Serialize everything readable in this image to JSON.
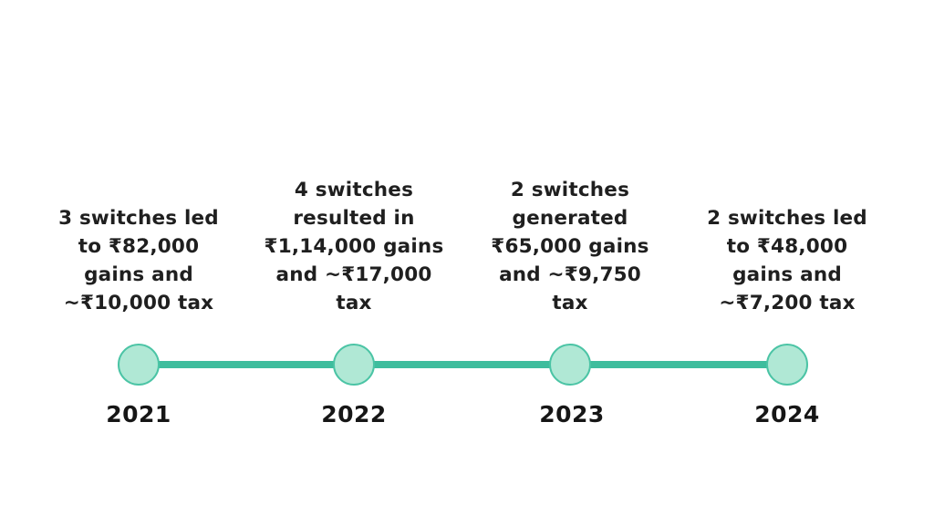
{
  "page": {
    "background_color": "#ffffff",
    "text_color": "#1f1f1f"
  },
  "timeline": {
    "line_color": "#3ebd9d",
    "node_fill_color": "#b0e8d5",
    "node_border_color": "#4bc4a5",
    "events": [
      {
        "year": "2021",
        "description": "3 switches led\nto ₹82,000\ngains and\n~₹10,000 tax"
      },
      {
        "year": "2022",
        "description": "4 switches\nresulted in\n₹1,14,000 gains\nand ~₹17,000\ntax"
      },
      {
        "year": "2023",
        "description": "2 switches\ngenerated\n₹65,000 gains\nand ~₹9,750\ntax"
      },
      {
        "year": "2024",
        "description": "2 switches led\nto ₹48,000\ngains and\n~₹7,200 tax"
      }
    ]
  }
}
